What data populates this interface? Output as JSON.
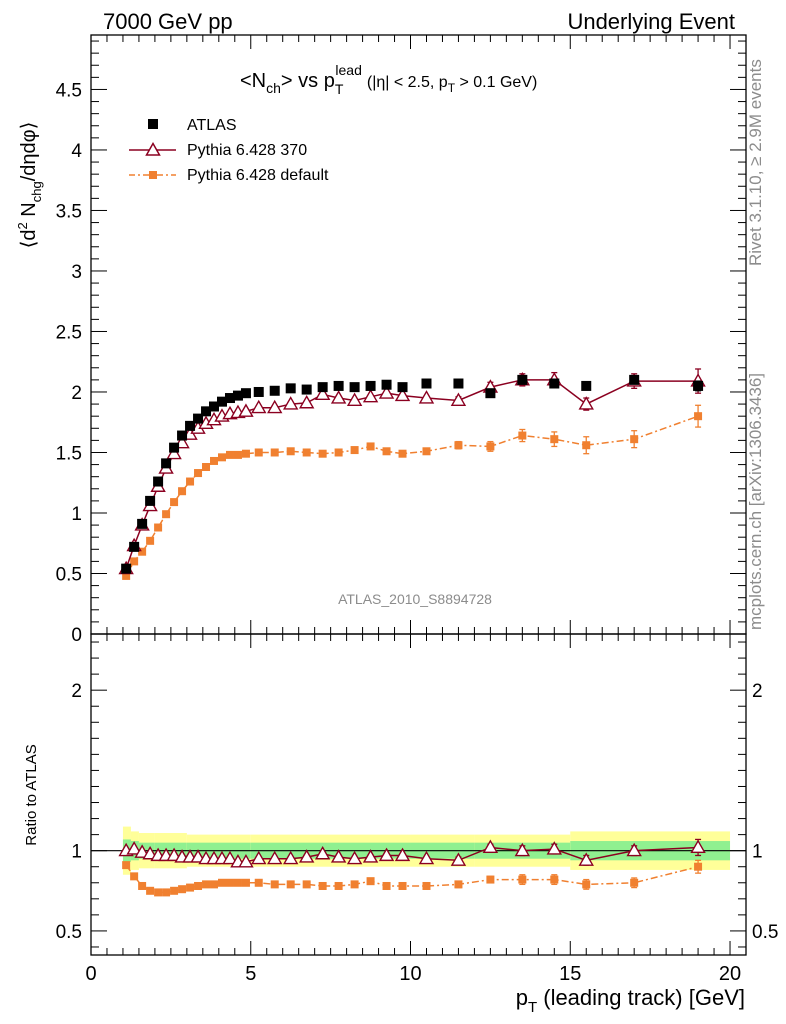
{
  "header": {
    "left": "7000 GeV pp",
    "right": "Underlying Event"
  },
  "side": {
    "top": "Rivet 3.1.10, ≥ 2.9M events",
    "bottom": "mcplots.cern.ch [arXiv:1306.3436]"
  },
  "colors": {
    "atlas": "#000000",
    "pythia370": "#8b0020",
    "pythia_default": "#f08030",
    "band_inner": "#90f090",
    "band_outer": "#ffff99"
  },
  "chart_data": [
    {
      "type": "scatter",
      "panel": "main",
      "title": {
        "prefix": "<N",
        "sub1": "ch",
        "mid": "> vs p",
        "sub2": "T",
        "sup": "lead",
        "cut": "(|η| < 2.5, p",
        "sub3": "T",
        "tail": " > 0.1 GeV)"
      },
      "ylabel": {
        "open": "⟨d",
        "sup": "2",
        "n": " N",
        "sub": "chg",
        "close": "/dηdφ⟩"
      },
      "ylim": [
        0,
        4.95
      ],
      "xlim": [
        0,
        20.5
      ],
      "yticks": [
        "0",
        "0.5",
        "1",
        "1.5",
        "2",
        "2.5",
        "3",
        "3.5",
        "4",
        "4.5"
      ],
      "watermark": "ATLAS_2010_S8894728",
      "legend": [
        "ATLAS",
        "Pythia 6.428 370",
        "Pythia 6.428 default"
      ],
      "x": [
        1.1,
        1.35,
        1.6,
        1.85,
        2.1,
        2.35,
        2.6,
        2.85,
        3.1,
        3.35,
        3.6,
        3.85,
        4.1,
        4.35,
        4.6,
        4.85,
        5.25,
        5.75,
        6.25,
        6.75,
        7.25,
        7.75,
        8.25,
        8.75,
        9.25,
        9.75,
        10.5,
        11.5,
        12.5,
        13.5,
        14.5,
        15.5,
        17.0,
        19.0
      ],
      "series": [
        {
          "name": "ATLAS",
          "values": [
            0.54,
            0.72,
            0.91,
            1.1,
            1.26,
            1.41,
            1.54,
            1.64,
            1.72,
            1.78,
            1.84,
            1.88,
            1.92,
            1.95,
            1.97,
            1.99,
            2.0,
            2.01,
            2.03,
            2.02,
            2.04,
            2.05,
            2.04,
            2.05,
            2.06,
            2.04,
            2.07,
            2.07,
            1.99,
            2.1,
            2.07,
            2.05,
            2.1,
            2.05
          ],
          "errors": [
            0.01,
            0.01,
            0.01,
            0.01,
            0.01,
            0.01,
            0.01,
            0.01,
            0.01,
            0.01,
            0.01,
            0.01,
            0.01,
            0.01,
            0.01,
            0.01,
            0.01,
            0.01,
            0.01,
            0.01,
            0.01,
            0.01,
            0.01,
            0.01,
            0.01,
            0.01,
            0.01,
            0.02,
            0.02,
            0.03,
            0.03,
            0.03,
            0.03,
            0.04
          ]
        },
        {
          "name": "Pythia 6.428 370",
          "values": [
            0.54,
            0.73,
            0.9,
            1.06,
            1.22,
            1.37,
            1.49,
            1.58,
            1.65,
            1.7,
            1.74,
            1.77,
            1.8,
            1.82,
            1.83,
            1.84,
            1.87,
            1.87,
            1.9,
            1.91,
            1.98,
            1.95,
            1.93,
            1.96,
            1.99,
            1.97,
            1.95,
            1.93,
            2.04,
            2.1,
            2.1,
            1.9,
            2.09,
            2.09
          ],
          "errors": [
            0.01,
            0.01,
            0.01,
            0.01,
            0.01,
            0.01,
            0.01,
            0.01,
            0.01,
            0.01,
            0.01,
            0.01,
            0.01,
            0.01,
            0.01,
            0.01,
            0.01,
            0.01,
            0.01,
            0.01,
            0.02,
            0.02,
            0.02,
            0.02,
            0.02,
            0.02,
            0.02,
            0.03,
            0.04,
            0.05,
            0.06,
            0.05,
            0.06,
            0.1
          ]
        },
        {
          "name": "Pythia 6.428 default",
          "values": [
            0.48,
            0.6,
            0.68,
            0.77,
            0.88,
            0.99,
            1.09,
            1.18,
            1.26,
            1.33,
            1.38,
            1.43,
            1.46,
            1.48,
            1.48,
            1.49,
            1.5,
            1.5,
            1.51,
            1.5,
            1.49,
            1.5,
            1.52,
            1.55,
            1.51,
            1.49,
            1.51,
            1.56,
            1.55,
            1.64,
            1.61,
            1.56,
            1.61,
            1.8
          ],
          "errors": [
            0.01,
            0.01,
            0.01,
            0.01,
            0.01,
            0.01,
            0.01,
            0.01,
            0.01,
            0.01,
            0.01,
            0.01,
            0.01,
            0.01,
            0.01,
            0.01,
            0.01,
            0.01,
            0.01,
            0.01,
            0.01,
            0.01,
            0.02,
            0.02,
            0.02,
            0.02,
            0.02,
            0.03,
            0.04,
            0.05,
            0.06,
            0.07,
            0.07,
            0.09
          ]
        }
      ]
    },
    {
      "type": "line",
      "panel": "ratio",
      "ylabel": "Ratio to ATLAS",
      "xlabel": {
        "p": "p",
        "sub": "T",
        "rest": " (leading track) [GeV]"
      },
      "xlim": [
        0,
        20.5
      ],
      "ylim": [
        0.35,
        2.35
      ],
      "yticks": [
        "0.5",
        "1",
        "2"
      ],
      "xticks": [
        "0",
        "5",
        "10",
        "15",
        "20"
      ],
      "band": {
        "x_edges": [
          1.0,
          1.25,
          1.5,
          2.0,
          3.0,
          5.0,
          10.0,
          12.0,
          15.0,
          20.0
        ],
        "inner": [
          0.07,
          0.06,
          0.05,
          0.05,
          0.05,
          0.05,
          0.05,
          0.05,
          0.06,
          0.07
        ],
        "outer": [
          0.15,
          0.12,
          0.11,
          0.11,
          0.1,
          0.1,
          0.1,
          0.1,
          0.12,
          0.13
        ]
      },
      "x": [
        1.1,
        1.35,
        1.6,
        1.85,
        2.1,
        2.35,
        2.6,
        2.85,
        3.1,
        3.35,
        3.6,
        3.85,
        4.1,
        4.35,
        4.6,
        4.85,
        5.25,
        5.75,
        6.25,
        6.75,
        7.25,
        7.75,
        8.25,
        8.75,
        9.25,
        9.75,
        10.5,
        11.5,
        12.5,
        13.5,
        14.5,
        15.5,
        17.0,
        19.0
      ],
      "series": [
        {
          "name": "Pythia 6.428 370",
          "values": [
            1.0,
            1.01,
            0.99,
            0.98,
            0.97,
            0.97,
            0.97,
            0.96,
            0.96,
            0.96,
            0.95,
            0.95,
            0.95,
            0.95,
            0.93,
            0.93,
            0.95,
            0.95,
            0.95,
            0.96,
            0.98,
            0.96,
            0.95,
            0.96,
            0.97,
            0.97,
            0.95,
            0.94,
            1.02,
            1.0,
            1.01,
            0.94,
            1.0,
            1.02
          ],
          "errors": [
            0.01,
            0.01,
            0.01,
            0.01,
            0.01,
            0.01,
            0.01,
            0.01,
            0.01,
            0.01,
            0.01,
            0.01,
            0.01,
            0.01,
            0.01,
            0.01,
            0.01,
            0.01,
            0.01,
            0.01,
            0.01,
            0.01,
            0.01,
            0.01,
            0.01,
            0.01,
            0.01,
            0.02,
            0.02,
            0.03,
            0.03,
            0.03,
            0.03,
            0.05
          ]
        },
        {
          "name": "Pythia 6.428 default",
          "values": [
            0.91,
            0.84,
            0.78,
            0.75,
            0.74,
            0.74,
            0.75,
            0.76,
            0.77,
            0.78,
            0.79,
            0.79,
            0.8,
            0.8,
            0.8,
            0.8,
            0.8,
            0.79,
            0.79,
            0.79,
            0.78,
            0.78,
            0.79,
            0.81,
            0.78,
            0.78,
            0.78,
            0.79,
            0.82,
            0.82,
            0.82,
            0.79,
            0.8,
            0.9
          ],
          "errors": [
            0.01,
            0.01,
            0.01,
            0.01,
            0.01,
            0.01,
            0.01,
            0.01,
            0.01,
            0.01,
            0.01,
            0.01,
            0.01,
            0.01,
            0.01,
            0.01,
            0.01,
            0.01,
            0.01,
            0.01,
            0.01,
            0.01,
            0.01,
            0.01,
            0.01,
            0.01,
            0.01,
            0.02,
            0.02,
            0.03,
            0.03,
            0.03,
            0.03,
            0.04
          ]
        }
      ]
    }
  ]
}
